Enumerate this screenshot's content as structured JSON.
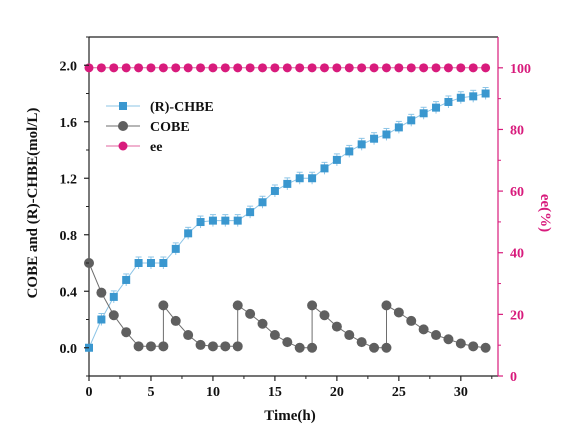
{
  "chart_data": {
    "type": "line",
    "xlabel": "Time(h)",
    "ylabel": "COBE and (R)-CHBE(mol/L)",
    "y2label": "ee(%)",
    "xlim": [
      0,
      33
    ],
    "ylim": [
      -0.2,
      2.2
    ],
    "y2lim": [
      0,
      110
    ],
    "xticks": [
      "0",
      "5",
      "10",
      "15",
      "20",
      "25",
      "30"
    ],
    "yticks": [
      "0.0",
      "0.4",
      "0.8",
      "1.2",
      "1.6",
      "2.0"
    ],
    "y2ticks": [
      "0",
      "20",
      "40",
      "60",
      "80",
      "100"
    ],
    "legend_position": "upper-left",
    "series": [
      {
        "name": "(R)-CHBE",
        "axis": "left",
        "marker": "square",
        "color": "#3a97cf",
        "line_color": "#8cc4e6",
        "error_bars": true,
        "x": [
          0,
          1,
          2,
          3,
          4,
          5,
          6,
          7,
          8,
          9,
          10,
          11,
          12,
          13,
          14,
          15,
          16,
          17,
          18,
          19,
          20,
          21,
          22,
          23,
          24,
          25,
          26,
          27,
          28,
          29,
          30,
          31,
          32
        ],
        "y": [
          0.0,
          0.2,
          0.36,
          0.48,
          0.6,
          0.6,
          0.6,
          0.7,
          0.81,
          0.89,
          0.9,
          0.9,
          0.9,
          0.96,
          1.03,
          1.11,
          1.16,
          1.2,
          1.2,
          1.27,
          1.33,
          1.39,
          1.44,
          1.48,
          1.51,
          1.56,
          1.61,
          1.66,
          1.7,
          1.74,
          1.77,
          1.78,
          1.8
        ]
      },
      {
        "name": "COBE",
        "axis": "left",
        "marker": "circle",
        "color": "#5f5f5f",
        "line_color": "#6e6e6e",
        "x": [
          0,
          1,
          2,
          3,
          4,
          5,
          6,
          6,
          7,
          8,
          9,
          10,
          11,
          12,
          12,
          13,
          14,
          15,
          16,
          17,
          18,
          18,
          19,
          20,
          21,
          22,
          23,
          24,
          24,
          25,
          26,
          27,
          28,
          29,
          30,
          31,
          32
        ],
        "y": [
          0.6,
          0.39,
          0.23,
          0.11,
          0.01,
          0.01,
          0.01,
          0.3,
          0.19,
          0.09,
          0.02,
          0.01,
          0.01,
          0.01,
          0.3,
          0.24,
          0.17,
          0.09,
          0.04,
          0.0,
          0.0,
          0.3,
          0.23,
          0.15,
          0.09,
          0.04,
          0.0,
          0.0,
          0.3,
          0.25,
          0.19,
          0.13,
          0.09,
          0.06,
          0.03,
          0.01,
          0.0
        ]
      },
      {
        "name": "ee",
        "axis": "right",
        "marker": "circle",
        "color": "#d81b7c",
        "line_color": "#e0649f",
        "x": [
          0,
          1,
          2,
          3,
          4,
          5,
          6,
          7,
          8,
          9,
          10,
          11,
          12,
          13,
          14,
          15,
          16,
          17,
          18,
          19,
          20,
          21,
          22,
          23,
          24,
          25,
          26,
          27,
          28,
          29,
          30,
          31,
          32
        ],
        "y": [
          100,
          100,
          100,
          100,
          100,
          100,
          100,
          100,
          100,
          100,
          100,
          100,
          100,
          100,
          100,
          100,
          100,
          100,
          100,
          100,
          100,
          100,
          100,
          100,
          100,
          100,
          100,
          100,
          100,
          100,
          100,
          100,
          100
        ]
      }
    ]
  },
  "colors": {
    "axis": "#222222",
    "right_axis": "#d81b7c"
  }
}
